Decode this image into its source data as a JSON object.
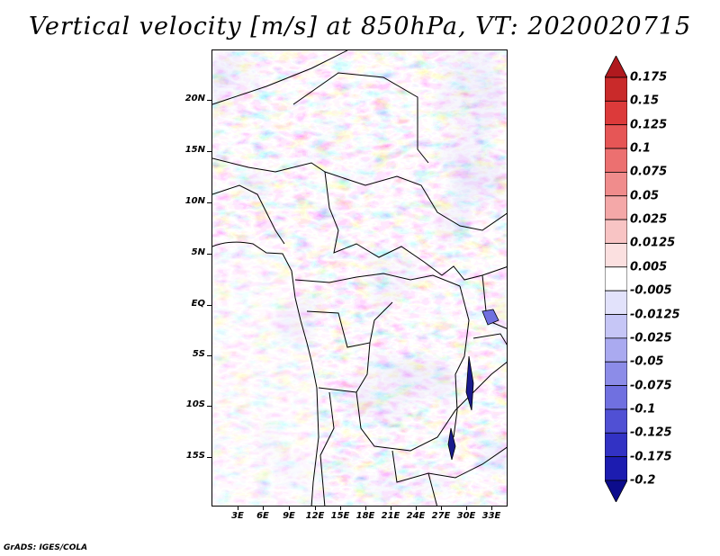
{
  "title": "Vertical velocity [m/s] at 850hPa, VT: 2020020715",
  "credit": "GrADS: IGES/COLA",
  "map": {
    "type": "filled-contour-map",
    "region": "Central Africa",
    "variable": "vertical velocity",
    "units": "m/s",
    "level": "850hPa",
    "valid_time": "2020020715",
    "lat_labels": [
      "20N",
      "15N",
      "10N",
      "5N",
      "EQ",
      "5S",
      "10S",
      "15S"
    ],
    "lon_labels": [
      "3E",
      "6E",
      "9E",
      "12E",
      "15E",
      "18E",
      "21E",
      "24E",
      "27E",
      "30E",
      "33E"
    ]
  },
  "colorbar": {
    "labels": [
      "0.175",
      "0.15",
      "0.125",
      "0.1",
      "0.075",
      "0.05",
      "0.025",
      "0.0125",
      "0.005",
      "-0.005",
      "-0.0125",
      "-0.025",
      "-0.05",
      "-0.075",
      "-0.1",
      "-0.125",
      "-0.175",
      "-0.2"
    ],
    "colors": [
      "#b0191e",
      "#c92a2a",
      "#dc3a3a",
      "#e65656",
      "#ec7070",
      "#f08c8c",
      "#f4a8a8",
      "#f8c4c4",
      "#fbe0e0",
      "#ffffff",
      "#e2e2fb",
      "#c6c6f6",
      "#aaaaf0",
      "#8c8ce8",
      "#7070e0",
      "#5050d4",
      "#3232c4",
      "#1c1cb0",
      "#0c0c8c"
    ]
  }
}
